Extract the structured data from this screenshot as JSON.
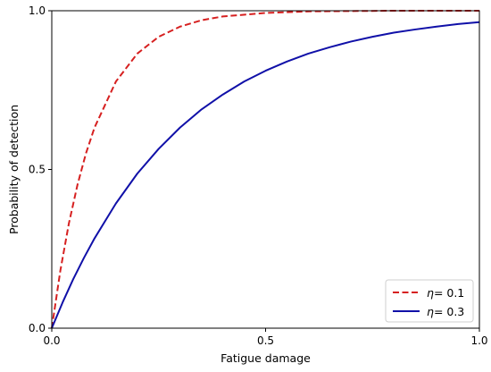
{
  "chart_data": {
    "type": "line",
    "xlabel": "Fatigue damage",
    "ylabel": "Probability of detection",
    "xlim": [
      0,
      1
    ],
    "ylim": [
      0,
      1
    ],
    "xticks": [
      "0.0",
      "0.5",
      "1.0"
    ],
    "yticks": [
      "0.0",
      "0.5",
      "1.0"
    ],
    "grid": false,
    "legend_position": "lower-right",
    "series": [
      {
        "name_symbol": "η",
        "name_rest": "= 0.1",
        "color": "#d62020",
        "line_style": "dashed",
        "x": [
          0,
          0.02,
          0.04,
          0.06,
          0.08,
          0.1,
          0.15,
          0.2,
          0.25,
          0.3,
          0.35,
          0.4,
          0.5,
          0.6,
          0.7,
          0.8,
          0.9,
          1.0
        ],
        "y": [
          0,
          0.181,
          0.33,
          0.451,
          0.551,
          0.632,
          0.777,
          0.865,
          0.918,
          0.95,
          0.97,
          0.982,
          0.993,
          0.998,
          0.999,
          1.0,
          1.0,
          1.0
        ]
      },
      {
        "name_symbol": "η",
        "name_rest": "= 0.3",
        "color": "#1010a8",
        "line_style": "solid",
        "x": [
          0,
          0.025,
          0.05,
          0.075,
          0.1,
          0.15,
          0.2,
          0.25,
          0.3,
          0.35,
          0.4,
          0.45,
          0.5,
          0.55,
          0.6,
          0.65,
          0.7,
          0.75,
          0.8,
          0.85,
          0.9,
          0.95,
          1.0
        ],
        "y": [
          0,
          0.08,
          0.154,
          0.221,
          0.283,
          0.393,
          0.487,
          0.565,
          0.632,
          0.689,
          0.736,
          0.777,
          0.811,
          0.84,
          0.865,
          0.885,
          0.903,
          0.918,
          0.931,
          0.941,
          0.95,
          0.958,
          0.964
        ]
      }
    ]
  }
}
